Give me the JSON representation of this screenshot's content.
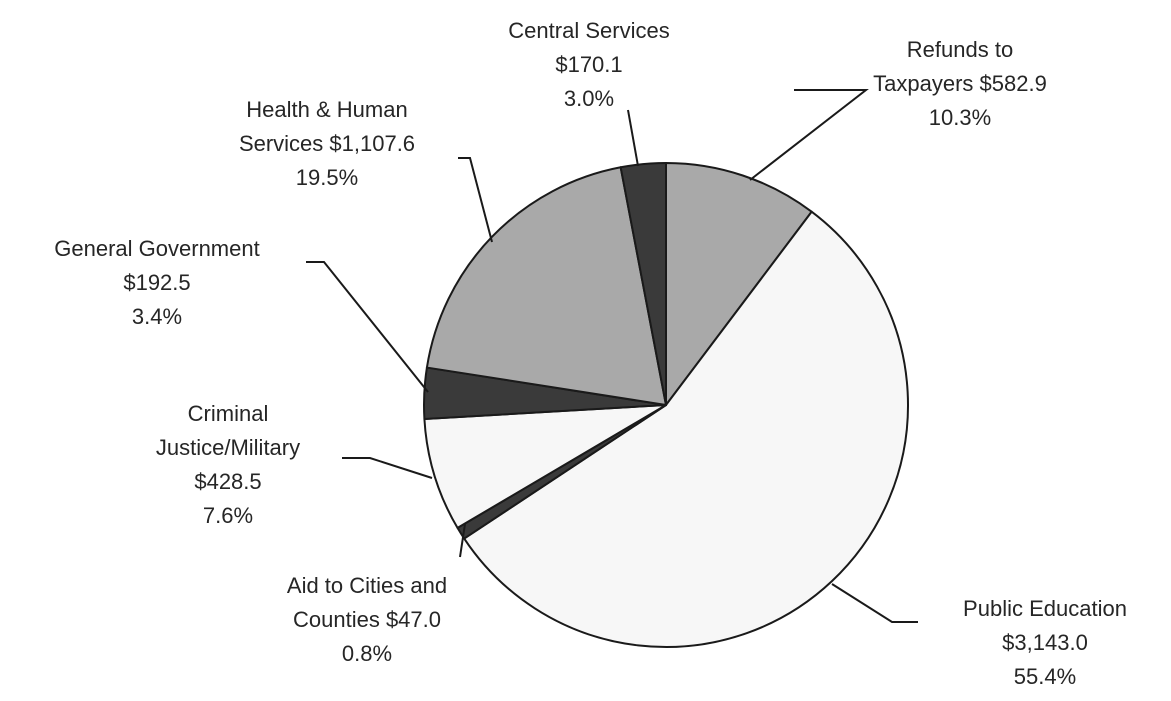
{
  "chart_data": {
    "type": "pie",
    "title": "",
    "start_angle_deg": 0,
    "direction": "clockwise",
    "colors": {
      "outline": "#1a1a1a",
      "leader": "#1a1a1a",
      "light": "#f7f7f7",
      "mid": "#a9a9a9",
      "dark": "#3a3a3a"
    },
    "slices": [
      {
        "key": "refunds",
        "value": 582.9,
        "percent": 10.3,
        "fill": "#a9a9a9",
        "label_lines": [
          "Refunds to",
          "Taxpayers  $582.9",
          "10.3%"
        ]
      },
      {
        "key": "public-education",
        "value": 3143.0,
        "percent": 55.4,
        "fill": "#f7f7f7",
        "label_lines": [
          "Public Education",
          "$3,143.0",
          "55.4%"
        ]
      },
      {
        "key": "aid-cities-counties",
        "value": 47.0,
        "percent": 0.8,
        "fill": "#3a3a3a",
        "label_lines": [
          "Aid to Cities and",
          "Counties  $47.0",
          "0.8%"
        ]
      },
      {
        "key": "criminal-justice",
        "value": 428.5,
        "percent": 7.6,
        "fill": "#f7f7f7",
        "label_lines": [
          "Criminal",
          "Justice/Military",
          "$428.5",
          "7.6%"
        ]
      },
      {
        "key": "general-government",
        "value": 192.5,
        "percent": 3.4,
        "fill": "#3a3a3a",
        "label_lines": [
          "General Government",
          "$192.5",
          "3.4%"
        ]
      },
      {
        "key": "health-human-services",
        "value": 1107.6,
        "percent": 19.5,
        "fill": "#a9a9a9",
        "label_lines": [
          "Health & Human",
          "Services  $1,107.6",
          "19.5%"
        ]
      },
      {
        "key": "central-services",
        "value": 170.1,
        "percent": 3.0,
        "fill": "#3a3a3a",
        "label_lines": [
          "Central Services",
          "$170.1",
          "3.0%"
        ]
      }
    ]
  }
}
